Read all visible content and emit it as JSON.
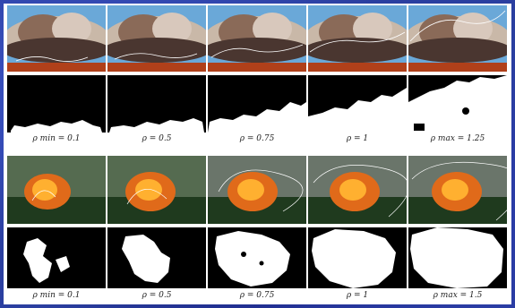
{
  "figure": {
    "rows": [
      {
        "name": "smoke",
        "captions": [
          "ρ min = 0.1",
          "ρ = 0.5",
          "ρ = 0.75",
          "ρ = 1",
          "ρ max = 1.25"
        ]
      },
      {
        "name": "fire",
        "captions": [
          "ρ min = 0.1",
          "ρ = 0.5",
          "ρ = 0.75",
          "ρ = 1",
          "ρ max = 1.5"
        ]
      }
    ]
  }
}
